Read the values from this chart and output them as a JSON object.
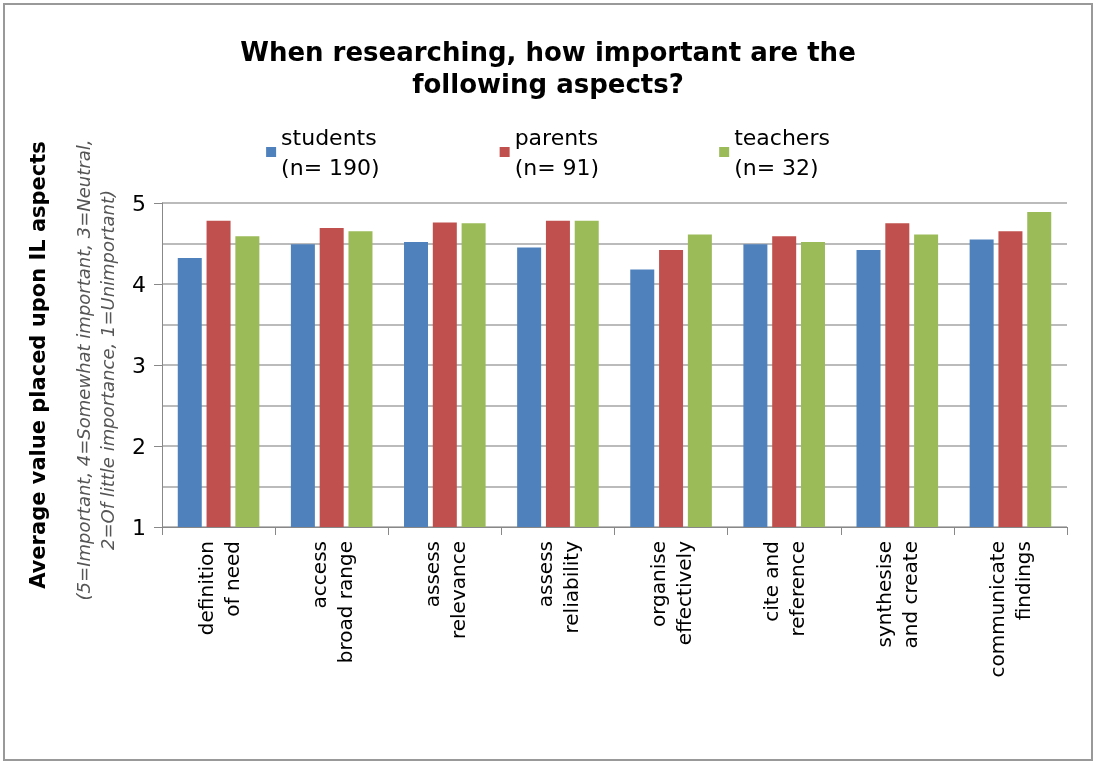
{
  "chart_data": {
    "type": "bar",
    "title": "When researching, how important are the\nfollowing aspects?",
    "ylabel": "Average value placed upon IL aspects",
    "annotations": [
      "(5=Important, 4=Somewhat important, 3=Neutral,\n2=Of little importance, 1=Unimportant)"
    ],
    "categories": [
      "definition\nof need",
      "access\nbroad range",
      "assess\nrelevance",
      "assess\nreliability",
      "organise\neffectively",
      "cite and\nreference",
      "synthesise\nand create",
      "communicate\nfindings"
    ],
    "series": [
      {
        "name": "students\n(n= 190)",
        "color": "#4f81bd",
        "values": [
          4.32,
          4.49,
          4.52,
          4.45,
          4.18,
          4.49,
          4.42,
          4.55
        ]
      },
      {
        "name": "parents\n(n= 91)",
        "color": "#c0504d",
        "values": [
          4.78,
          4.69,
          4.76,
          4.78,
          4.42,
          4.59,
          4.75,
          4.65
        ]
      },
      {
        "name": "teachers\n(n= 32)",
        "color": "#9bbb59",
        "values": [
          4.59,
          4.65,
          4.75,
          4.78,
          4.61,
          4.52,
          4.61,
          4.89
        ]
      }
    ],
    "ylim": [
      1,
      5
    ],
    "yticks": [
      1,
      {
        "value": 1.5,
        "label": null
      },
      2,
      {
        "value": 2.5,
        "label": null
      },
      3,
      {
        "value": 3.5,
        "label": null
      },
      4,
      {
        "value": 4.5,
        "label": null
      },
      5
    ],
    "grid": "y",
    "legend": "top"
  }
}
